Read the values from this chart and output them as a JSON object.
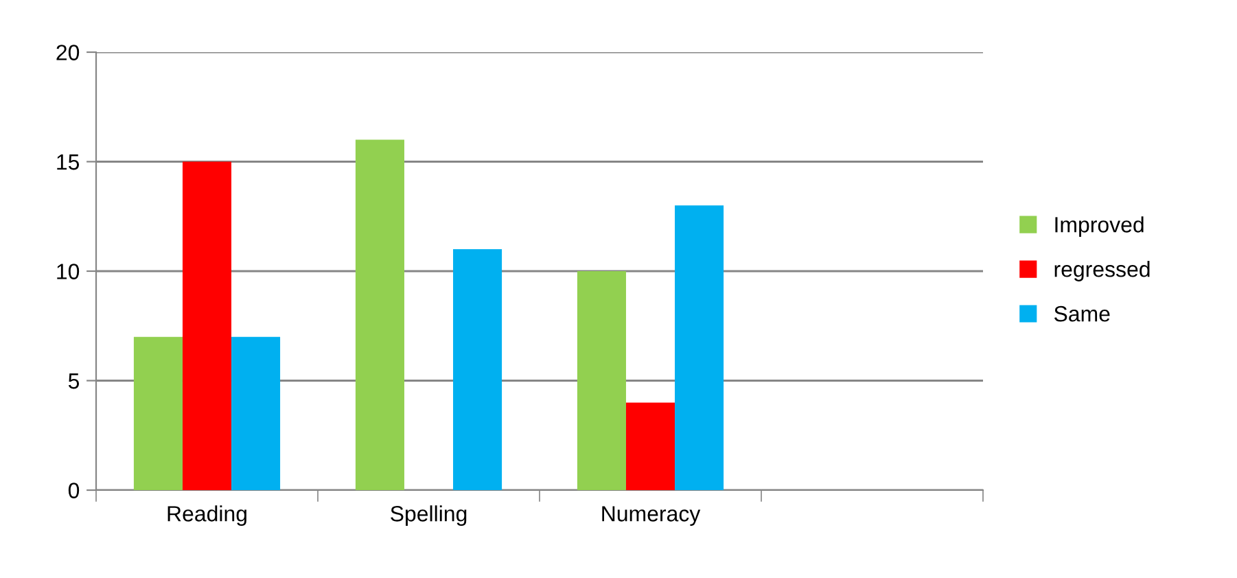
{
  "chart_data": {
    "type": "bar",
    "categories": [
      "Reading",
      "Spelling",
      "Numeracy",
      null
    ],
    "series": [
      {
        "name": "Improved",
        "color": "#92d050",
        "values": [
          7,
          16,
          10,
          null
        ]
      },
      {
        "name": "regressed",
        "color": "#ff0000",
        "values": [
          15,
          0,
          4,
          null
        ]
      },
      {
        "name": "Same",
        "color": "#00b0f0",
        "values": [
          7,
          11,
          13,
          null
        ]
      }
    ],
    "ylim": [
      0,
      20
    ],
    "yticks": [
      0,
      5,
      10,
      15,
      20
    ],
    "grid": "y",
    "legend": "right"
  }
}
